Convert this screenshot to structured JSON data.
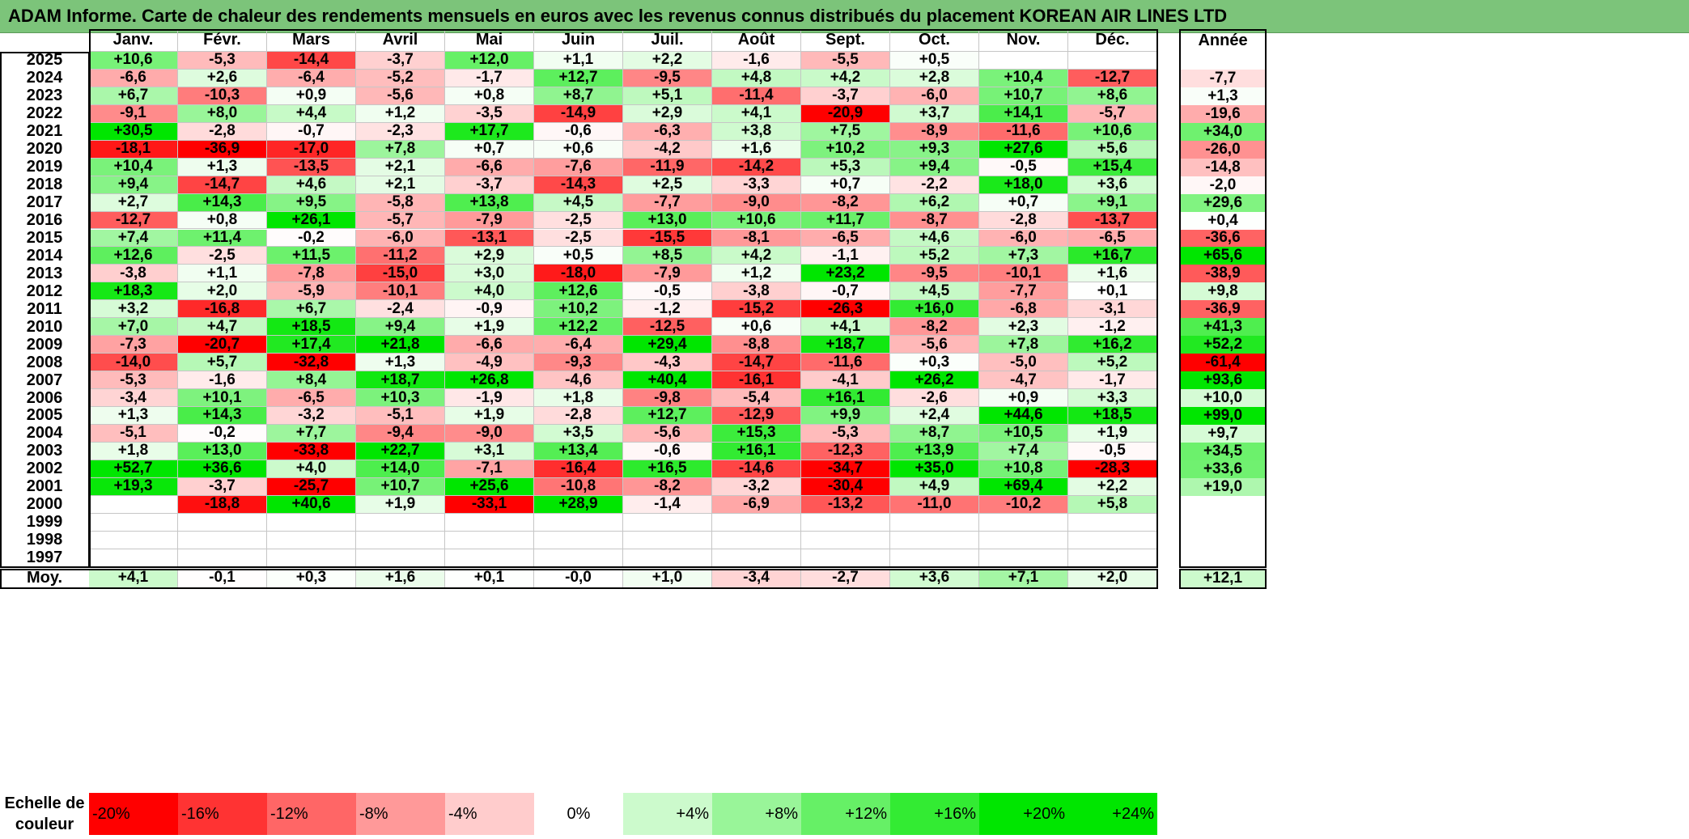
{
  "title": "ADAM Informe. Carte de chaleur des rendements mensuels en euros avec les revenus connus distribués du placement KOREAN AIR LINES LTD",
  "chart_data": {
    "type": "heatmap",
    "title": "ADAM Informe. Carte de chaleur des rendements mensuels en euros avec les revenus connus distribués du placement KOREAN AIR LINES LTD",
    "columns": [
      "Janv.",
      "Févr.",
      "Mars",
      "Avril",
      "Mai",
      "Juin",
      "Juil.",
      "Août",
      "Sept.",
      "Oct.",
      "Nov.",
      "Déc."
    ],
    "year_column_label": "Année",
    "average_label": "Moy.",
    "rows": [
      {
        "year": "2025",
        "values": [
          "+10,6",
          "-5,3",
          "-14,4",
          "-3,7",
          "+12,0",
          "+1,1",
          "+2,2",
          "-1,6",
          "-5,5",
          "+0,5",
          "",
          ""
        ],
        "annual": ""
      },
      {
        "year": "2024",
        "values": [
          "-6,6",
          "+2,6",
          "-6,4",
          "-5,2",
          "-1,7",
          "+12,7",
          "-9,5",
          "+4,8",
          "+4,2",
          "+2,8",
          "+10,4",
          "-12,7"
        ],
        "annual": "-7,7"
      },
      {
        "year": "2023",
        "values": [
          "+6,7",
          "-10,3",
          "+0,9",
          "-5,6",
          "+0,8",
          "+8,7",
          "+5,1",
          "-11,4",
          "-3,7",
          "-6,0",
          "+10,7",
          "+8,6"
        ],
        "annual": "+1,3"
      },
      {
        "year": "2022",
        "values": [
          "-9,1",
          "+8,0",
          "+4,4",
          "+1,2",
          "-3,5",
          "-14,9",
          "+2,9",
          "+4,1",
          "-20,9",
          "+3,7",
          "+14,1",
          "-5,7"
        ],
        "annual": "-19,6"
      },
      {
        "year": "2021",
        "values": [
          "+30,5",
          "-2,8",
          "-0,7",
          "-2,3",
          "+17,7",
          "-0,6",
          "-6,3",
          "+3,8",
          "+7,5",
          "-8,9",
          "-11,6",
          "+10,6"
        ],
        "annual": "+34,0"
      },
      {
        "year": "2020",
        "values": [
          "-18,1",
          "-36,9",
          "-17,0",
          "+7,8",
          "+0,7",
          "+0,6",
          "-4,2",
          "+1,6",
          "+10,2",
          "+9,3",
          "+27,6",
          "+5,6"
        ],
        "annual": "-26,0"
      },
      {
        "year": "2019",
        "values": [
          "+10,4",
          "+1,3",
          "-13,5",
          "+2,1",
          "-6,6",
          "-7,6",
          "-11,9",
          "-14,2",
          "+5,3",
          "+9,4",
          "-0,5",
          "+15,4"
        ],
        "annual": "-14,8"
      },
      {
        "year": "2018",
        "values": [
          "+9,4",
          "-14,7",
          "+4,6",
          "+2,1",
          "-3,7",
          "-14,3",
          "+2,5",
          "-3,3",
          "+0,7",
          "-2,2",
          "+18,0",
          "+3,6"
        ],
        "annual": "-2,0"
      },
      {
        "year": "2017",
        "values": [
          "+2,7",
          "+14,3",
          "+9,5",
          "-5,8",
          "+13,8",
          "+4,5",
          "-7,7",
          "-9,0",
          "-8,2",
          "+6,2",
          "+0,7",
          "+9,1"
        ],
        "annual": "+29,6"
      },
      {
        "year": "2016",
        "values": [
          "-12,7",
          "+0,8",
          "+26,1",
          "-5,7",
          "-7,9",
          "-2,5",
          "+13,0",
          "+10,6",
          "+11,7",
          "-8,7",
          "-2,8",
          "-13,7"
        ],
        "annual": "+0,4"
      },
      {
        "year": "2015",
        "values": [
          "+7,4",
          "+11,4",
          "-0,2",
          "-6,0",
          "-13,1",
          "-2,5",
          "-15,5",
          "-8,1",
          "-6,5",
          "+4,6",
          "-6,0",
          "-6,5"
        ],
        "annual": "-36,6"
      },
      {
        "year": "2014",
        "values": [
          "+12,6",
          "-2,5",
          "+11,5",
          "-11,2",
          "+2,9",
          "+0,5",
          "+8,5",
          "+4,2",
          "-1,1",
          "+5,2",
          "+7,3",
          "+16,7"
        ],
        "annual": "+65,6"
      },
      {
        "year": "2013",
        "values": [
          "-3,8",
          "+1,1",
          "-7,8",
          "-15,0",
          "+3,0",
          "-18,0",
          "-7,9",
          "+1,2",
          "+23,2",
          "-9,5",
          "-10,1",
          "+1,6"
        ],
        "annual": "-38,9"
      },
      {
        "year": "2012",
        "values": [
          "+18,3",
          "+2,0",
          "-5,9",
          "-10,1",
          "+4,0",
          "+12,6",
          "-0,5",
          "-3,8",
          "-0,7",
          "+4,5",
          "-7,7",
          "+0,1"
        ],
        "annual": "+9,8"
      },
      {
        "year": "2011",
        "values": [
          "+3,2",
          "-16,8",
          "+6,7",
          "-2,4",
          "-0,9",
          "+10,2",
          "-1,2",
          "-15,2",
          "-26,3",
          "+16,0",
          "-6,8",
          "-3,1"
        ],
        "annual": "-36,9"
      },
      {
        "year": "2010",
        "values": [
          "+7,0",
          "+4,7",
          "+18,5",
          "+9,4",
          "+1,9",
          "+12,2",
          "-12,5",
          "+0,6",
          "+4,1",
          "-8,2",
          "+2,3",
          "-1,2"
        ],
        "annual": "+41,3"
      },
      {
        "year": "2009",
        "values": [
          "-7,3",
          "-20,7",
          "+17,4",
          "+21,8",
          "-6,6",
          "-6,4",
          "+29,4",
          "-8,8",
          "+18,7",
          "-5,6",
          "+7,8",
          "+16,2"
        ],
        "annual": "+52,2"
      },
      {
        "year": "2008",
        "values": [
          "-14,0",
          "+5,7",
          "-32,8",
          "+1,3",
          "-4,9",
          "-9,3",
          "-4,3",
          "-14,7",
          "-11,6",
          "+0,3",
          "-5,0",
          "+5,2"
        ],
        "annual": "-61,4"
      },
      {
        "year": "2007",
        "values": [
          "-5,3",
          "-1,6",
          "+8,4",
          "+18,7",
          "+26,8",
          "-4,6",
          "+40,4",
          "-16,1",
          "-4,1",
          "+26,2",
          "-4,7",
          "-1,7"
        ],
        "annual": "+93,6"
      },
      {
        "year": "2006",
        "values": [
          "-3,4",
          "+10,1",
          "-6,5",
          "+10,3",
          "-1,9",
          "+1,8",
          "-9,8",
          "-5,4",
          "+16,1",
          "-2,6",
          "+0,9",
          "+3,3"
        ],
        "annual": "+10,0"
      },
      {
        "year": "2005",
        "values": [
          "+1,3",
          "+14,3",
          "-3,2",
          "-5,1",
          "+1,9",
          "-2,8",
          "+12,7",
          "-12,9",
          "+9,9",
          "+2,4",
          "+44,6",
          "+18,5"
        ],
        "annual": "+99,0"
      },
      {
        "year": "2004",
        "values": [
          "-5,1",
          "-0,2",
          "+7,7",
          "-9,4",
          "-9,0",
          "+3,5",
          "-5,6",
          "+15,3",
          "-5,3",
          "+8,7",
          "+10,5",
          "+1,9"
        ],
        "annual": "+9,7"
      },
      {
        "year": "2003",
        "values": [
          "+1,8",
          "+13,0",
          "-33,8",
          "+22,7",
          "+3,1",
          "+13,4",
          "-0,6",
          "+16,1",
          "-12,3",
          "+13,9",
          "+7,4",
          "-0,5"
        ],
        "annual": "+34,5"
      },
      {
        "year": "2002",
        "values": [
          "+52,7",
          "+36,6",
          "+4,0",
          "+14,0",
          "-7,1",
          "-16,4",
          "+16,5",
          "-14,6",
          "-34,7",
          "+35,0",
          "+10,8",
          "-28,3"
        ],
        "annual": "+33,6"
      },
      {
        "year": "2001",
        "values": [
          "+19,3",
          "-3,7",
          "-25,7",
          "+10,7",
          "+25,6",
          "-10,8",
          "-8,2",
          "-3,2",
          "-30,4",
          "+4,9",
          "+69,4",
          "+2,2"
        ],
        "annual": "+19,0"
      },
      {
        "year": "2000",
        "values": [
          "",
          "-18,8",
          "+40,6",
          "+1,9",
          "-33,1",
          "+28,9",
          "-1,4",
          "-6,9",
          "-13,2",
          "-11,0",
          "-10,2",
          "+5,8"
        ],
        "annual": ""
      },
      {
        "year": "1999",
        "values": [
          "",
          "",
          "",
          "",
          "",
          "",
          "",
          "",
          "",
          "",
          "",
          ""
        ],
        "annual": ""
      },
      {
        "year": "1998",
        "values": [
          "",
          "",
          "",
          "",
          "",
          "",
          "",
          "",
          "",
          "",
          "",
          ""
        ],
        "annual": ""
      },
      {
        "year": "1997",
        "values": [
          "",
          "",
          "",
          "",
          "",
          "",
          "",
          "",
          "",
          "",
          "",
          ""
        ],
        "annual": ""
      }
    ],
    "averages": [
      "+4,1",
      "-0,1",
      "+0,3",
      "+1,6",
      "+0,1",
      "-0,0",
      "+1,0",
      "-3,4",
      "-2,7",
      "+3,6",
      "+7,1",
      "+2,0"
    ],
    "average_annual": "+12,1",
    "color_scale": {
      "label": "Echelle de couleur",
      "stops": [
        "-20%",
        "-16%",
        "-12%",
        "-8%",
        "-4%",
        "0%",
        "+4%",
        "+8%",
        "+12%",
        "+16%",
        "+20%",
        "+24%"
      ],
      "negative_color": "#ff0000",
      "neutral_color": "#ffffff",
      "positive_color": "#00e600"
    }
  }
}
